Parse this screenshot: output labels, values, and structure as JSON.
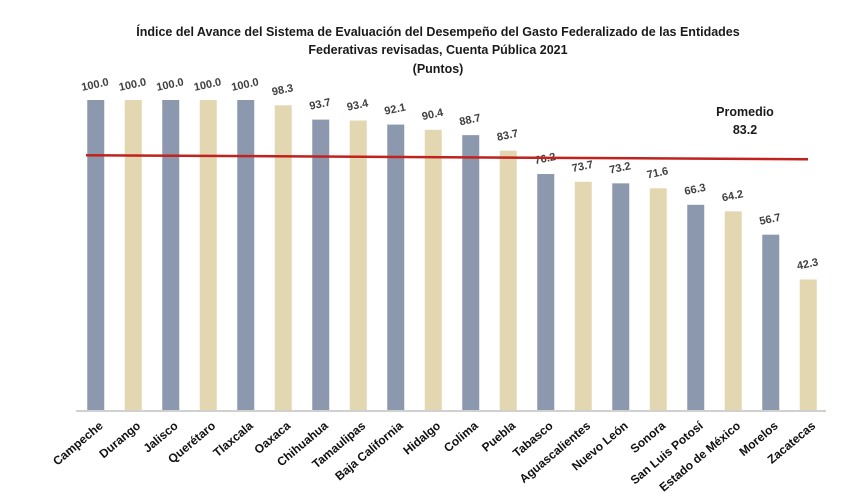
{
  "chart_data": {
    "type": "bar",
    "title": [
      "Índice del Avance del Sistema de Evaluación del Desempeño del Gasto Federalizado de las Entidades",
      "Federativas revisadas, Cuenta Pública 2021",
      "(Puntos)"
    ],
    "xlabel": "",
    "ylabel": "",
    "ylim": [
      0,
      100
    ],
    "grid": false,
    "categories": [
      "Campeche",
      "Durango",
      "Jalisco",
      "Querétaro",
      "Tlaxcala",
      "Oaxaca",
      "Chihuahua",
      "Tamaulipas",
      "Baja California",
      "Hidalgo",
      "Colima",
      "Puebla",
      "Tabasco",
      "Aguascalientes",
      "Nuevo León",
      "Sonora",
      "San Luis Potosí",
      "Estado de México",
      "Morelos",
      "Zacatecas"
    ],
    "values": [
      100.0,
      100.0,
      100.0,
      100.0,
      100.0,
      98.3,
      93.7,
      93.4,
      92.1,
      90.4,
      88.7,
      83.7,
      76.2,
      73.7,
      73.2,
      71.6,
      66.3,
      64.2,
      56.7,
      42.3
    ],
    "value_labels": [
      "100.0",
      "100.0",
      "100.0",
      "100.0",
      "100.0",
      "98.3",
      "93.7",
      "93.4",
      "92.1",
      "90.4",
      "88.7",
      "83.7",
      "76.2",
      "73.7",
      "73.2",
      "71.6",
      "66.3",
      "64.2",
      "56.7",
      "42.3"
    ],
    "bar_colors": [
      "#8c98ae",
      "#e3d7b1"
    ],
    "average": {
      "label": "Promedio",
      "value": 83.2,
      "value_label": "83.2",
      "color": "#c0221e",
      "placement": "top-right"
    }
  }
}
